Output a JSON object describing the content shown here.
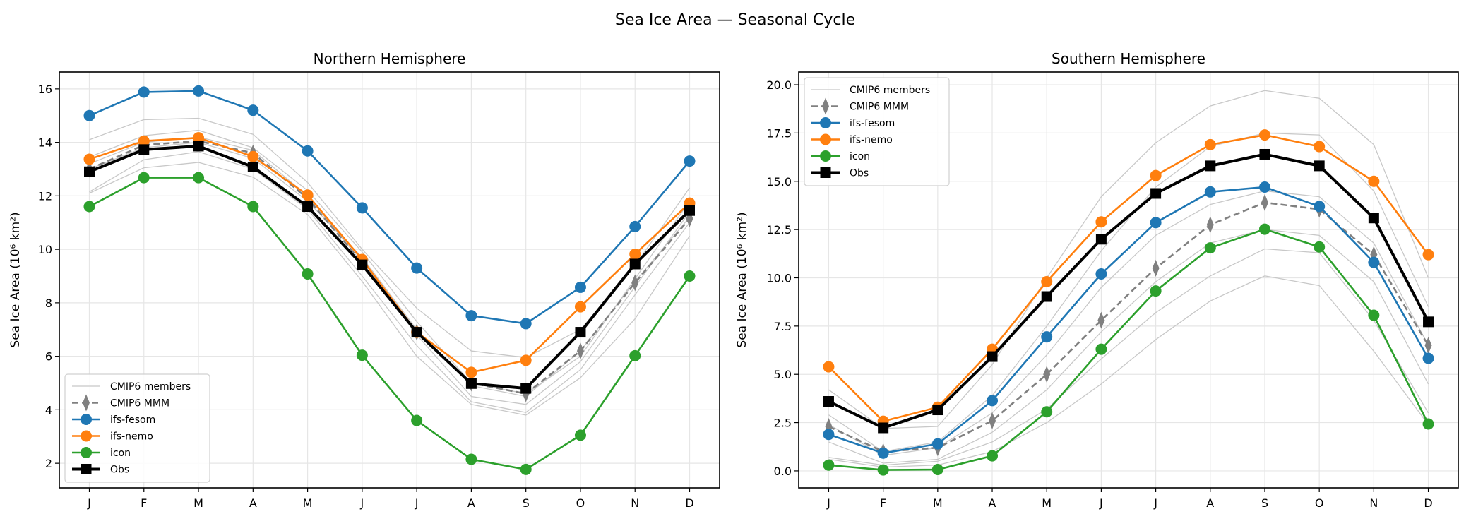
{
  "title": "Sea Ice Area — Seasonal Cycle",
  "colors": {
    "ifs-fesom": "#1f77b4",
    "ifs-nemo": "#ff7f0e",
    "icon": "#2ca02c",
    "Obs": "#000000",
    "CMIP6 MMM": "#808080",
    "CMIP6 members": "#c8c8c8"
  },
  "chart_data": [
    {
      "type": "line",
      "title": "Northern Hemisphere",
      "ylabel": "Sea Ice Area (10⁶ km²)",
      "xlabel": "",
      "categories": [
        "J",
        "F",
        "M",
        "A",
        "M",
        "J",
        "J",
        "A",
        "S",
        "O",
        "N",
        "D"
      ],
      "yticks": [
        2,
        4,
        6,
        8,
        10,
        12,
        14,
        16
      ],
      "ylim": [
        1.08,
        16.63
      ],
      "grid": true,
      "legend": "lower-left",
      "members": [
        [
          14.1,
          14.85,
          14.9,
          14.3,
          12.5,
          10.0,
          7.8,
          6.2,
          5.95,
          7.0,
          9.4,
          12.3
        ],
        [
          13.45,
          14.25,
          14.45,
          13.8,
          12.2,
          9.9,
          7.3,
          5.0,
          4.6,
          6.0,
          8.9,
          11.8
        ],
        [
          13.2,
          14.0,
          14.2,
          13.7,
          12.0,
          9.5,
          6.8,
          4.5,
          4.2,
          5.8,
          8.6,
          11.4
        ],
        [
          12.15,
          13.35,
          13.65,
          13.0,
          11.5,
          9.0,
          6.4,
          4.3,
          3.9,
          5.5,
          8.3,
          11.0
        ],
        [
          12.1,
          13.05,
          13.25,
          12.7,
          11.3,
          8.8,
          6.0,
          4.2,
          3.8,
          5.2,
          7.4,
          10.5
        ],
        [
          13.0,
          13.8,
          14.0,
          13.4,
          11.8,
          9.7,
          7.0,
          4.9,
          4.5,
          6.2,
          8.8,
          11.2
        ]
      ],
      "series": [
        {
          "name": "CMIP6 MMM",
          "values": [
            13.0,
            13.9,
            14.05,
            13.6,
            11.9,
            9.5,
            6.9,
            5.0,
            4.6,
            6.2,
            8.75,
            11.15
          ]
        },
        {
          "name": "ifs-fesom",
          "values": [
            15.0,
            15.88,
            15.92,
            15.2,
            13.68,
            11.55,
            9.3,
            7.52,
            7.22,
            8.58,
            10.85,
            13.3
          ]
        },
        {
          "name": "ifs-nemo",
          "values": [
            13.37,
            14.05,
            14.17,
            13.47,
            12.03,
            9.62,
            6.9,
            5.4,
            5.85,
            7.85,
            9.82,
            11.73
          ]
        },
        {
          "name": "icon",
          "values": [
            11.6,
            12.68,
            12.68,
            11.6,
            9.08,
            6.04,
            3.6,
            2.15,
            1.77,
            3.05,
            6.02,
            9.0
          ]
        },
        {
          "name": "Obs",
          "values": [
            12.9,
            13.73,
            13.86,
            13.08,
            11.6,
            9.42,
            6.9,
            4.98,
            4.8,
            6.9,
            9.45,
            11.45
          ]
        }
      ]
    },
    {
      "type": "line",
      "title": "Southern Hemisphere",
      "ylabel": "Sea Ice Area (10⁶ km²)",
      "xlabel": "",
      "categories": [
        "J",
        "F",
        "M",
        "A",
        "M",
        "J",
        "J",
        "A",
        "S",
        "O",
        "N",
        "D"
      ],
      "yticks": [
        0.0,
        2.5,
        5.0,
        7.5,
        10.0,
        12.5,
        15.0,
        17.5,
        20.0
      ],
      "ylim": [
        -0.88,
        20.66
      ],
      "grid": true,
      "legend": "upper-left",
      "members": [
        [
          4.2,
          2.2,
          2.3,
          5.5,
          10.0,
          14.2,
          17.0,
          18.9,
          19.7,
          19.3,
          16.9,
          10.0
        ],
        [
          2.9,
          1.0,
          1.5,
          3.9,
          7.5,
          11.4,
          14.7,
          16.8,
          17.5,
          17.4,
          14.5,
          8.5
        ],
        [
          2.4,
          0.8,
          1.2,
          3.0,
          6.0,
          9.5,
          12.2,
          13.8,
          14.5,
          14.2,
          11.8,
          6.5
        ],
        [
          1.5,
          0.4,
          0.6,
          2.0,
          4.2,
          7.2,
          9.8,
          11.8,
          12.5,
          12.2,
          9.8,
          4.5
        ],
        [
          0.7,
          0.3,
          0.5,
          1.5,
          3.2,
          5.8,
          8.2,
          10.1,
          11.5,
          11.3,
          7.8,
          3.0
        ],
        [
          0.6,
          0.2,
          0.3,
          1.0,
          2.5,
          4.5,
          6.8,
          8.8,
          10.1,
          9.6,
          6.2,
          2.4
        ]
      ],
      "series": [
        {
          "name": "CMIP6 MMM",
          "values": [
            2.3,
            1.0,
            1.2,
            2.6,
            5.0,
            7.8,
            10.5,
            12.75,
            13.9,
            13.55,
            11.2,
            6.5
          ]
        },
        {
          "name": "ifs-fesom",
          "values": [
            1.89,
            0.92,
            1.4,
            3.64,
            6.94,
            10.2,
            12.86,
            14.45,
            14.7,
            13.7,
            10.8,
            5.83
          ]
        },
        {
          "name": "ifs-nemo",
          "values": [
            5.39,
            2.57,
            3.3,
            6.3,
            9.8,
            12.9,
            15.3,
            16.9,
            17.4,
            16.8,
            15.0,
            11.2
          ]
        },
        {
          "name": "icon",
          "values": [
            0.3,
            0.05,
            0.07,
            0.78,
            3.06,
            6.3,
            9.32,
            11.55,
            12.52,
            11.6,
            8.06,
            2.43
          ]
        },
        {
          "name": "Obs",
          "values": [
            3.6,
            2.23,
            3.16,
            5.92,
            9.03,
            12.0,
            14.37,
            15.8,
            16.4,
            15.8,
            13.1,
            7.72
          ]
        }
      ]
    }
  ],
  "legend": {
    "entries": [
      "CMIP6 members",
      "CMIP6 MMM",
      "ifs-fesom",
      "ifs-nemo",
      "icon",
      "Obs"
    ]
  }
}
